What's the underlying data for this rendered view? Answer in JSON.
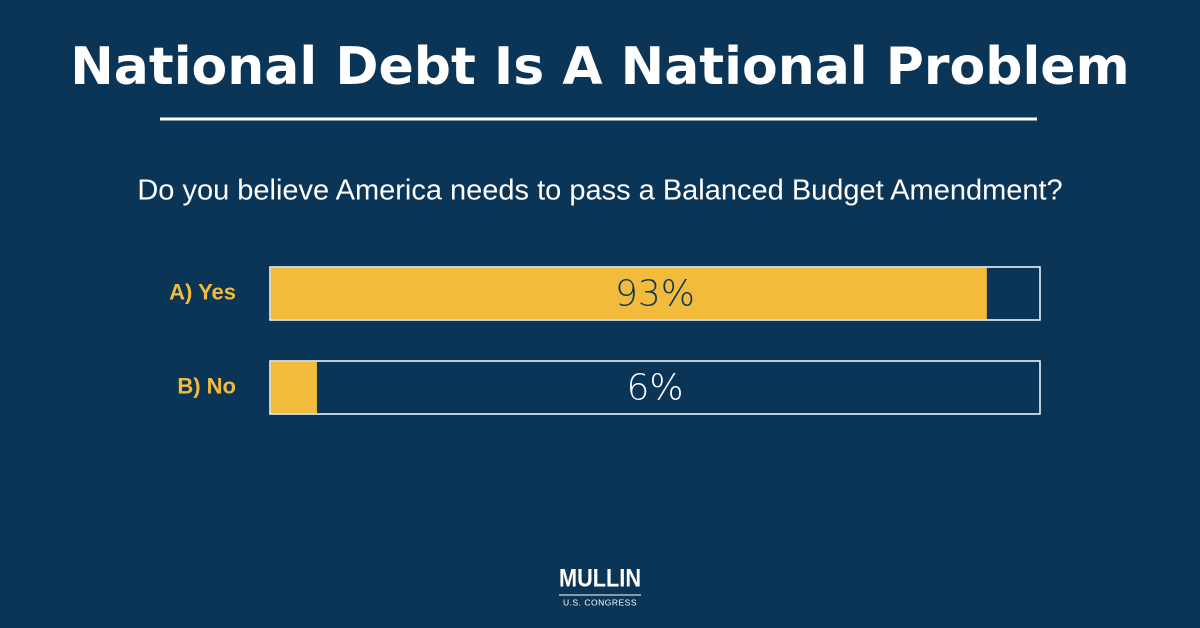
{
  "chart_data": {
    "type": "bar",
    "orientation": "horizontal",
    "title": "National Debt Is A National Problem",
    "subtitle": "Do you believe America needs to pass a Balanced Budget Amendment?",
    "categories": [
      "A) Yes",
      "B) No"
    ],
    "values": [
      93,
      6
    ],
    "value_labels": [
      "93%",
      "6%"
    ],
    "color": "#f2bb3c",
    "xlim": [
      0,
      100
    ]
  },
  "logo": {
    "name": "MULLIN",
    "tagline": "U.S. CONGRESS"
  }
}
